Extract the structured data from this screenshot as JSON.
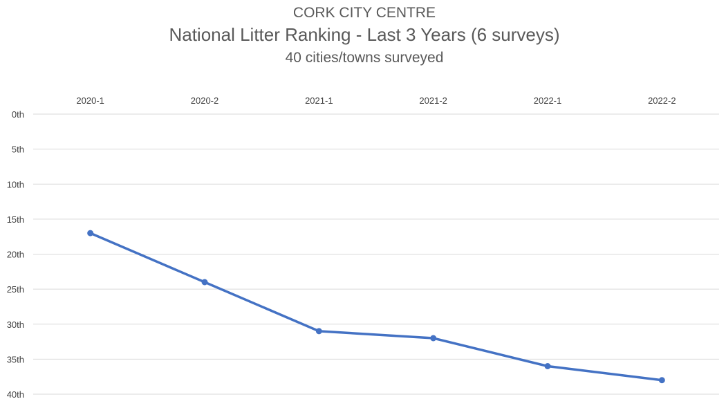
{
  "chart_data": {
    "type": "line",
    "supertitle": "CORK CITY CENTRE",
    "title": "National Litter Ranking - Last 3 Years (6 surveys)",
    "subtitle": "40 cities/towns surveyed",
    "xlabel": "",
    "ylabel": "",
    "categories": [
      "2020-1",
      "2020-2",
      "2021-1",
      "2021-2",
      "2022-1",
      "2022-2"
    ],
    "y_ticks": [
      "0th",
      "5th",
      "10th",
      "15th",
      "20th",
      "25th",
      "30th",
      "35th",
      "40th"
    ],
    "ylim": [
      0,
      40
    ],
    "y_inverted": true,
    "x_axis_position": "top",
    "grid": true,
    "legend": "none",
    "series": [
      {
        "values": [
          17,
          24,
          31,
          32,
          36,
          38
        ],
        "color": "#4472c4"
      }
    ]
  }
}
